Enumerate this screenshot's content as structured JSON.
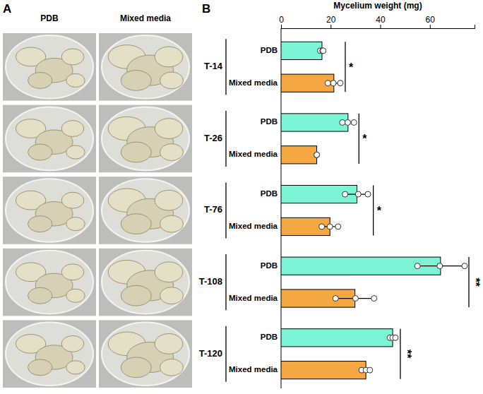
{
  "panel_a": {
    "label": "A"
  },
  "chart_data": {
    "type": "bar",
    "panel_label": "B",
    "orientation": "horizontal",
    "xlabel": "Mycelium weight (mg)",
    "categories": [
      "T-14",
      "T-26",
      "T-76",
      "T-108",
      "T-120"
    ],
    "series": [
      {
        "name": "PDB",
        "color": "#7cf5d6",
        "values": [
          16.5,
          27.0,
          30.6,
          64.3,
          45.0
        ],
        "errors": [
          0.6,
          2.3,
          4.6,
          9.5,
          1.1
        ],
        "points": [
          [
            15.8,
            16.7,
            17.0
          ],
          [
            24.7,
            26.9,
            29.4
          ],
          [
            25.8,
            31.1,
            35.0
          ],
          [
            55.0,
            64.0,
            74.0
          ],
          [
            43.9,
            45.0,
            46.1
          ]
        ]
      },
      {
        "name": "Mixed media",
        "color": "#f5a742",
        "values": [
          21.3,
          14.4,
          19.7,
          29.8,
          34.2
        ],
        "errors": [
          2.5,
          0.1,
          3.3,
          7.8,
          1.7
        ],
        "points": [
          [
            18.9,
            21.1,
            23.9
          ],
          [
            14.4,
            14.4,
            14.4
          ],
          [
            16.4,
            19.7,
            23.0
          ],
          [
            22.0,
            30.0,
            37.5
          ],
          [
            32.5,
            34.2,
            35.8
          ]
        ]
      }
    ],
    "significance": [
      "*",
      "*",
      "*",
      "**",
      "**"
    ],
    "xlim": [
      0,
      78
    ],
    "xticks": [
      0,
      20,
      40,
      60
    ]
  }
}
